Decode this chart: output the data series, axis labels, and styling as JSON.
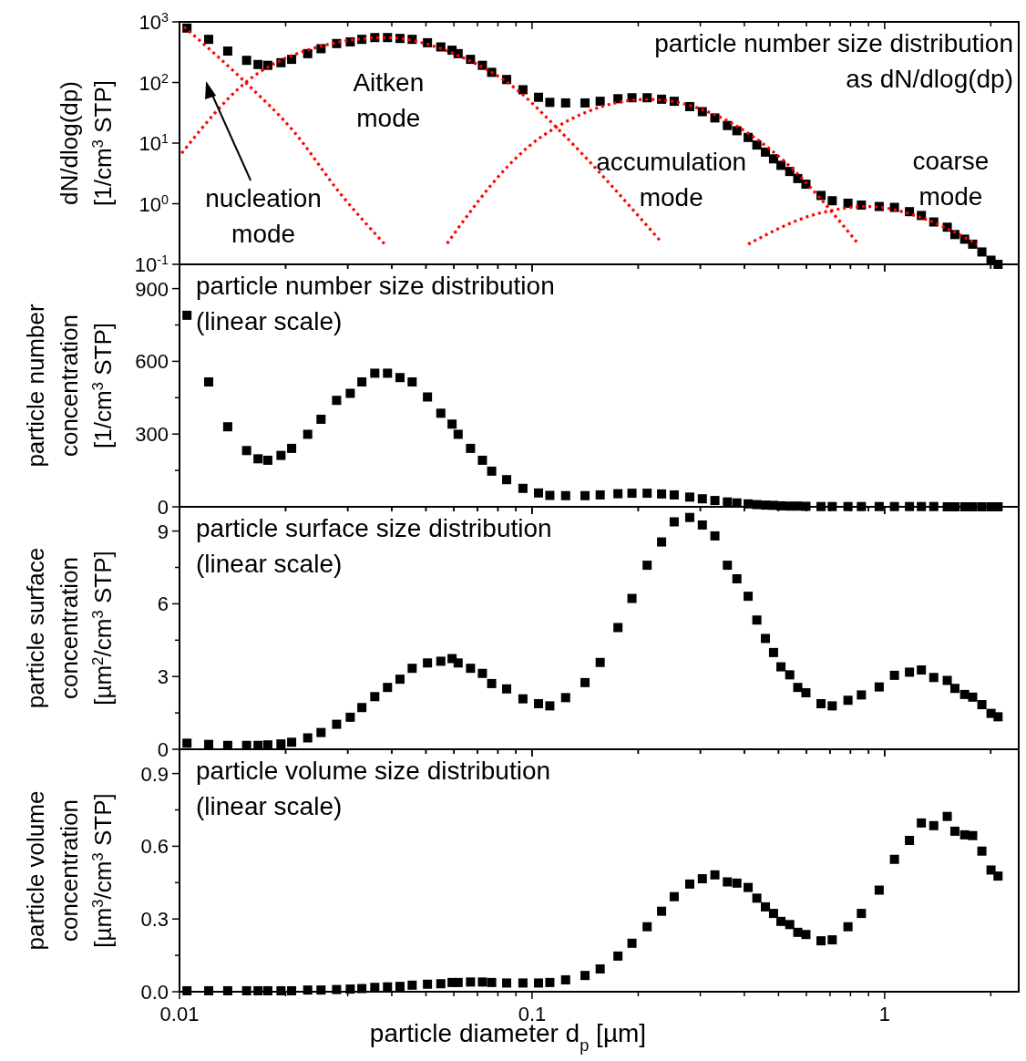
{
  "chart_data": [
    {
      "type": "scatter",
      "title": "particle number size distribution\nas dN/dlog(dp)",
      "ylabel": "dN/dlog(dp)\n[1/cm$^{3}$ STP]",
      "log": "xy",
      "tick_labels": "y",
      "x": [
        0.0105,
        0.0121,
        0.0137,
        0.0155,
        0.0167,
        0.0178,
        0.0194,
        0.0208,
        0.0231,
        0.0252,
        0.0279,
        0.0305,
        0.0329,
        0.0358,
        0.0389,
        0.0422,
        0.0457,
        0.0505,
        0.0551,
        0.0593,
        0.0617,
        0.0669,
        0.0723,
        0.0768,
        0.0847,
        0.0942,
        0.1043,
        0.1123,
        0.1245,
        0.1413,
        0.156,
        0.1752,
        0.192,
        0.212,
        0.233,
        0.253,
        0.28,
        0.304,
        0.33,
        0.358,
        0.381,
        0.41,
        0.434,
        0.459,
        0.484,
        0.508,
        0.538,
        0.567,
        0.598,
        0.66,
        0.71,
        0.787,
        0.859,
        0.965,
        1.066,
        1.176,
        1.271,
        1.378,
        1.505,
        1.582,
        1.686,
        1.777,
        1.887,
        2.003,
        2.097
      ],
      "xlim": [
        0.01,
        2.4
      ],
      "xticks": [
        0.01,
        {
          "value": 0.02,
          "label": null
        },
        {
          "value": 0.03,
          "label": null
        },
        {
          "value": 0.04,
          "label": null
        },
        {
          "value": 0.05,
          "label": null
        },
        {
          "value": 0.06,
          "label": null
        },
        {
          "value": 0.07,
          "label": null
        },
        {
          "value": 0.08,
          "label": null
        },
        {
          "value": 0.09,
          "label": null
        },
        0.1,
        {
          "value": 0.2,
          "label": null
        },
        {
          "value": 0.3,
          "label": null
        },
        {
          "value": 0.4,
          "label": null
        },
        {
          "value": 0.5,
          "label": null
        },
        {
          "value": 0.6,
          "label": null
        },
        {
          "value": 0.7,
          "label": null
        },
        {
          "value": 0.8,
          "label": null
        },
        {
          "value": 0.9,
          "label": null
        },
        1,
        {
          "value": 2,
          "label": null
        }
      ],
      "ylim": [
        0.1,
        1000
      ],
      "yticks": [
        {
          "value": 0.1,
          "label": "10$^{-1}$"
        },
        {
          "value": 1,
          "label": "10$^{0}$"
        },
        {
          "value": 10,
          "label": "10$^{1}$"
        },
        {
          "value": 100,
          "label": "10$^{2}$"
        },
        {
          "value": 1000,
          "label": "10$^{3}$"
        }
      ],
      "series": [
        {
          "marker": "square",
          "color": "#000000",
          "values": [
            790,
            515,
            330,
            232,
            198,
            192,
            212,
            241,
            299,
            361,
            439,
            468,
            515,
            551,
            551,
            533,
            515,
            453,
            386,
            341,
            299,
            241,
            192,
            147,
            112,
            76,
            57,
            47,
            46,
            46,
            49,
            54,
            56,
            56,
            53,
            49,
            40,
            33,
            26,
            19.5,
            16,
            12.4,
            9.3,
            7.1,
            5.5,
            4.3,
            3.4,
            2.6,
            2.1,
            1.37,
            1.12,
            1.02,
            0.95,
            0.9,
            0.87,
            0.74,
            0.64,
            0.5,
            0.41,
            0.31,
            0.26,
            0.215,
            0.16,
            0.117,
            0.1
          ]
        },
        {
          "type": "line",
          "marker": "none",
          "color": "#ff0000",
          "line_style": "dotted",
          "x": [
            0.0103,
            0.0154,
            0.0212,
            0.0285,
            0.0382
          ],
          "values": [
            830,
            100,
            15,
            1.5,
            0.215
          ]
        },
        {
          "type": "line",
          "marker": "none",
          "color": "#ff0000",
          "line_style": "dotted",
          "x": [
            0.01014,
            0.0154,
            0.0249,
            0.0384,
            0.062,
            0.0906,
            0.118,
            0.233
          ],
          "values": [
            6.8,
            100,
            390,
            550,
            275,
            76,
            17.5,
            0.23
          ]
        },
        {
          "type": "line",
          "marker": "none",
          "color": "#ff0000",
          "line_style": "dotted",
          "x": [
            0.0574,
            0.0852,
            0.098,
            0.118,
            0.213,
            0.336,
            0.51,
            0.84
          ],
          "values": [
            0.22,
            4.1,
            8.9,
            18.7,
            52.7,
            28,
            5.5,
            0.22
          ]
        },
        {
          "type": "line",
          "marker": "none",
          "color": "#ff0000",
          "line_style": "dotted",
          "x": [
            0.41,
            0.62,
            0.9,
            1.27,
            1.83
          ],
          "values": [
            0.215,
            0.64,
            0.9,
            0.59,
            0.215
          ]
        }
      ],
      "annotations": [
        "Aitken\nmode",
        "nucleation\nmode",
        "accumulation\nmode",
        "coarse\nmode"
      ]
    },
    {
      "type": "scatter",
      "title": "particle number size distribution\n(linear scale)",
      "ylabel": "particle number\nconcentration\n[1/cm$^{3}$ STP]",
      "log": "x",
      "tick_labels": "y",
      "x": [
        0.0105,
        0.0121,
        0.0137,
        0.0155,
        0.0167,
        0.0178,
        0.0194,
        0.0208,
        0.0231,
        0.0252,
        0.0279,
        0.0305,
        0.0329,
        0.0358,
        0.0389,
        0.0422,
        0.0457,
        0.0505,
        0.0551,
        0.0593,
        0.0617,
        0.0669,
        0.0723,
        0.0768,
        0.0847,
        0.0942,
        0.1043,
        0.1123,
        0.1245,
        0.1413,
        0.156,
        0.1752,
        0.192,
        0.212,
        0.233,
        0.253,
        0.28,
        0.304,
        0.33,
        0.358,
        0.381,
        0.41,
        0.434,
        0.459,
        0.484,
        0.508,
        0.538,
        0.567,
        0.598,
        0.66,
        0.71,
        0.787,
        0.859,
        0.965,
        1.066,
        1.176,
        1.271,
        1.378,
        1.505,
        1.582,
        1.686,
        1.777,
        1.887,
        2.003,
        2.097
      ],
      "xlim": [
        0.01,
        2.4
      ],
      "xticks": [
        0.01,
        {
          "value": 0.02,
          "label": null
        },
        {
          "value": 0.03,
          "label": null
        },
        {
          "value": 0.04,
          "label": null
        },
        {
          "value": 0.05,
          "label": null
        },
        {
          "value": 0.06,
          "label": null
        },
        {
          "value": 0.07,
          "label": null
        },
        {
          "value": 0.08,
          "label": null
        },
        {
          "value": 0.09,
          "label": null
        },
        0.1,
        {
          "value": 0.2,
          "label": null
        },
        {
          "value": 0.3,
          "label": null
        },
        {
          "value": 0.4,
          "label": null
        },
        {
          "value": 0.5,
          "label": null
        },
        {
          "value": 0.6,
          "label": null
        },
        {
          "value": 0.7,
          "label": null
        },
        {
          "value": 0.8,
          "label": null
        },
        {
          "value": 0.9,
          "label": null
        },
        1,
        {
          "value": 2,
          "label": null
        }
      ],
      "ylim": [
        0,
        1000
      ],
      "yticks": [
        0,
        {
          "value": 150,
          "label": null
        },
        300,
        {
          "value": 450,
          "label": null
        },
        600,
        {
          "value": 750,
          "label": null
        },
        900
      ],
      "series": [
        {
          "marker": "square",
          "color": "#000000",
          "values": [
            790,
            515,
            330,
            232,
            198,
            192,
            212,
            241,
            299,
            361,
            439,
            468,
            515,
            551,
            551,
            533,
            515,
            453,
            386,
            341,
            299,
            241,
            192,
            147,
            112,
            76,
            57,
            47,
            46,
            46,
            49,
            54,
            56,
            56,
            53,
            49,
            40,
            33,
            26,
            20,
            16,
            12,
            9,
            7,
            6,
            4,
            3,
            3,
            2,
            1,
            1,
            1,
            1,
            1,
            1,
            1,
            1,
            1,
            0,
            0,
            0,
            0,
            0,
            0,
            0
          ]
        }
      ]
    },
    {
      "type": "scatter",
      "title": "particle surface size distribution\n(linear scale)",
      "ylabel": "particle surface\nconcentration\n[µm$^{2}$/cm$^{3}$ STP]",
      "log": "x",
      "tick_labels": "y",
      "x": [
        0.0105,
        0.0121,
        0.0137,
        0.0155,
        0.0167,
        0.0178,
        0.0194,
        0.0208,
        0.0231,
        0.0252,
        0.0279,
        0.0305,
        0.0329,
        0.0358,
        0.0389,
        0.0422,
        0.0457,
        0.0505,
        0.0551,
        0.0593,
        0.0617,
        0.0669,
        0.0723,
        0.0768,
        0.0847,
        0.0942,
        0.1043,
        0.1123,
        0.1245,
        0.1413,
        0.156,
        0.1752,
        0.192,
        0.212,
        0.233,
        0.253,
        0.28,
        0.304,
        0.33,
        0.358,
        0.381,
        0.41,
        0.434,
        0.459,
        0.484,
        0.508,
        0.538,
        0.567,
        0.598,
        0.66,
        0.71,
        0.787,
        0.859,
        0.965,
        1.066,
        1.176,
        1.271,
        1.378,
        1.505,
        1.582,
        1.686,
        1.777,
        1.887,
        2.003,
        2.097
      ],
      "xlim": [
        0.01,
        2.4
      ],
      "xticks": [
        0.01,
        {
          "value": 0.02,
          "label": null
        },
        {
          "value": 0.03,
          "label": null
        },
        {
          "value": 0.04,
          "label": null
        },
        {
          "value": 0.05,
          "label": null
        },
        {
          "value": 0.06,
          "label": null
        },
        {
          "value": 0.07,
          "label": null
        },
        {
          "value": 0.08,
          "label": null
        },
        {
          "value": 0.09,
          "label": null
        },
        0.1,
        {
          "value": 0.2,
          "label": null
        },
        {
          "value": 0.3,
          "label": null
        },
        {
          "value": 0.4,
          "label": null
        },
        {
          "value": 0.5,
          "label": null
        },
        {
          "value": 0.6,
          "label": null
        },
        {
          "value": 0.7,
          "label": null
        },
        {
          "value": 0.8,
          "label": null
        },
        {
          "value": 0.9,
          "label": null
        },
        1,
        {
          "value": 2,
          "label": null
        }
      ],
      "ylim": [
        0,
        10
      ],
      "yticks": [
        0,
        {
          "value": 1.5,
          "label": null
        },
        3,
        {
          "value": 4.5,
          "label": null
        },
        6,
        {
          "value": 7.5,
          "label": null
        },
        9
      ],
      "series": [
        {
          "marker": "square",
          "color": "#000000",
          "values": [
            0.25,
            0.2,
            0.16,
            0.16,
            0.16,
            0.18,
            0.22,
            0.29,
            0.47,
            0.69,
            1.03,
            1.32,
            1.72,
            2.17,
            2.55,
            2.89,
            3.34,
            3.56,
            3.63,
            3.74,
            3.56,
            3.34,
            3.13,
            2.71,
            2.49,
            2.08,
            1.88,
            1.79,
            2.13,
            2.75,
            3.58,
            5.02,
            6.22,
            7.59,
            8.55,
            9.38,
            9.56,
            9.25,
            8.8,
            7.59,
            7.03,
            6.31,
            5.33,
            4.57,
            3.99,
            3.4,
            3.07,
            2.55,
            2.33,
            1.88,
            1.79,
            2.02,
            2.24,
            2.57,
            3.05,
            3.18,
            3.27,
            2.96,
            2.84,
            2.51,
            2.26,
            2.15,
            1.84,
            1.48,
            1.34
          ]
        }
      ]
    },
    {
      "type": "scatter",
      "title": "particle volume size distribution\n(linear scale)",
      "ylabel": "particle volume\nconcentration\n[µm$^{3}$/cm$^{3}$ STP]",
      "xlabel": "particle diameter d$_{p}$ [µm]",
      "log": "x",
      "x": [
        0.0105,
        0.0121,
        0.0137,
        0.0155,
        0.0167,
        0.0178,
        0.0194,
        0.0208,
        0.0231,
        0.0252,
        0.0279,
        0.0305,
        0.0329,
        0.0358,
        0.0389,
        0.0422,
        0.0457,
        0.0505,
        0.0551,
        0.0593,
        0.0617,
        0.0669,
        0.0723,
        0.0768,
        0.0847,
        0.0942,
        0.1043,
        0.1123,
        0.1245,
        0.1413,
        0.156,
        0.1752,
        0.192,
        0.212,
        0.233,
        0.253,
        0.28,
        0.304,
        0.33,
        0.358,
        0.381,
        0.41,
        0.434,
        0.459,
        0.484,
        0.508,
        0.538,
        0.567,
        0.598,
        0.66,
        0.71,
        0.787,
        0.859,
        0.965,
        1.066,
        1.176,
        1.271,
        1.378,
        1.505,
        1.582,
        1.686,
        1.777,
        1.887,
        2.003,
        2.097
      ],
      "xlim": [
        0.01,
        2.4
      ],
      "xticks": [
        0.01,
        {
          "value": 0.02,
          "label": null
        },
        {
          "value": 0.03,
          "label": null
        },
        {
          "value": 0.04,
          "label": null
        },
        {
          "value": 0.05,
          "label": null
        },
        {
          "value": 0.06,
          "label": null
        },
        {
          "value": 0.07,
          "label": null
        },
        {
          "value": 0.08,
          "label": null
        },
        {
          "value": 0.09,
          "label": null
        },
        0.1,
        {
          "value": 0.2,
          "label": null
        },
        {
          "value": 0.3,
          "label": null
        },
        {
          "value": 0.4,
          "label": null
        },
        {
          "value": 0.5,
          "label": null
        },
        {
          "value": 0.6,
          "label": null
        },
        {
          "value": 0.7,
          "label": null
        },
        {
          "value": 0.8,
          "label": null
        },
        {
          "value": 0.9,
          "label": null
        },
        1,
        {
          "value": 2,
          "label": null
        }
      ],
      "ylim": [
        0,
        1
      ],
      "yticks": [
        {
          "value": 0,
          "label": "0.0"
        },
        {
          "value": 0.15,
          "label": null
        },
        0.3,
        {
          "value": 0.45,
          "label": null
        },
        0.6,
        {
          "value": 0.75,
          "label": null
        },
        0.9
      ],
      "series": [
        {
          "marker": "square",
          "color": "#000000",
          "values": [
            0.004,
            0.004,
            0.004,
            0.004,
            0.004,
            0.004,
            0.004,
            0.004,
            0.007,
            0.007,
            0.009,
            0.011,
            0.013,
            0.018,
            0.02,
            0.022,
            0.027,
            0.031,
            0.033,
            0.038,
            0.038,
            0.04,
            0.04,
            0.038,
            0.036,
            0.036,
            0.036,
            0.038,
            0.049,
            0.067,
            0.094,
            0.147,
            0.2,
            0.268,
            0.332,
            0.392,
            0.444,
            0.466,
            0.482,
            0.453,
            0.448,
            0.43,
            0.386,
            0.35,
            0.323,
            0.29,
            0.277,
            0.245,
            0.236,
            0.21,
            0.214,
            0.268,
            0.323,
            0.419,
            0.546,
            0.624,
            0.696,
            0.685,
            0.723,
            0.662,
            0.647,
            0.644,
            0.58,
            0.502,
            0.477
          ]
        }
      ]
    }
  ]
}
